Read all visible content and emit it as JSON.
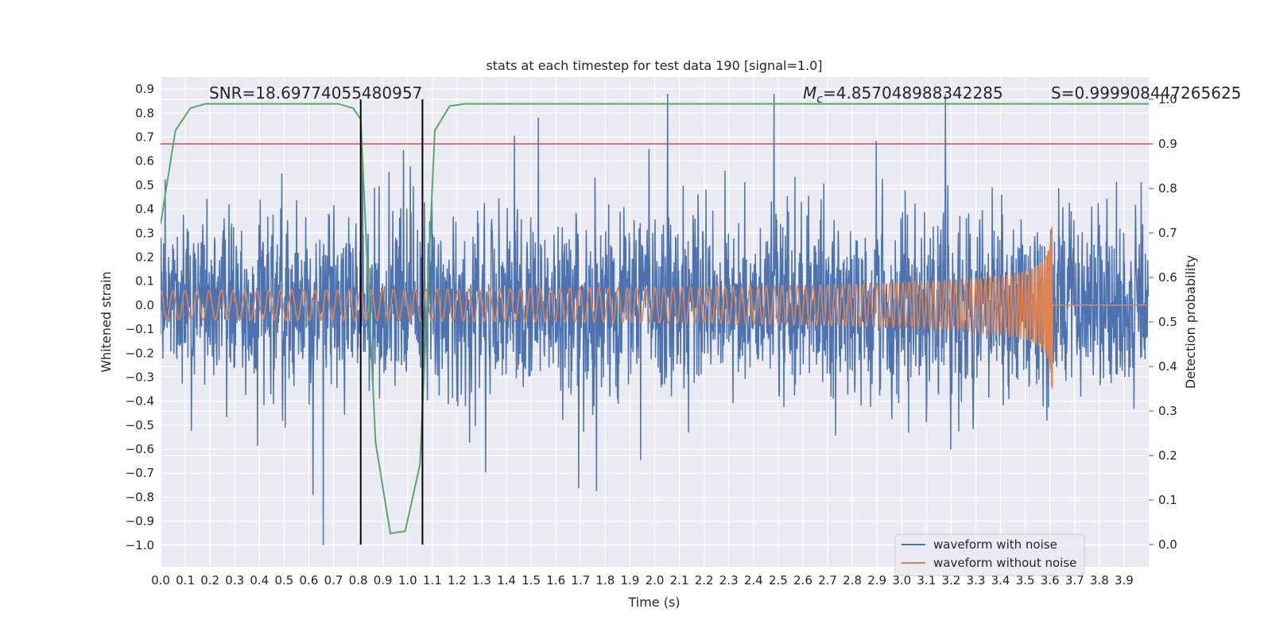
{
  "chart_data": {
    "type": "line",
    "title": "stats at each timestep for test data 190 [signal=1.0]",
    "xlabel": "Time (s)",
    "ylabel": "Whitened strain",
    "ylabel_right": "Detection probability",
    "xlim": [
      0.0,
      4.0
    ],
    "ylim": [
      -1.09,
      0.95
    ],
    "ylim_right": [
      -0.05,
      1.05
    ],
    "x_ticks": [
      "0.0",
      "0.1",
      "0.2",
      "0.3",
      "0.4",
      "0.5",
      "0.6",
      "0.7",
      "0.8",
      "0.9",
      "1.0",
      "1.1",
      "1.2",
      "1.3",
      "1.4",
      "1.5",
      "1.6",
      "1.7",
      "1.8",
      "1.9",
      "2.0",
      "2.1",
      "2.2",
      "2.3",
      "2.4",
      "2.5",
      "2.6",
      "2.7",
      "2.8",
      "2.9",
      "3.0",
      "3.1",
      "3.2",
      "3.3",
      "3.4",
      "3.5",
      "3.6",
      "3.7",
      "3.8",
      "3.9"
    ],
    "y_ticks": [
      "0.9",
      "0.8",
      "0.7",
      "0.6",
      "0.5",
      "0.4",
      "0.3",
      "0.2",
      "0.1",
      "0.0",
      "−0.1",
      "−0.2",
      "−0.3",
      "−0.4",
      "−0.5",
      "−0.6",
      "−0.7",
      "−0.8",
      "−0.9",
      "−1.0"
    ],
    "y_right_ticks": [
      "1.0",
      "0.9",
      "0.8",
      "0.7",
      "0.6",
      "0.5",
      "0.4",
      "0.3",
      "0.2",
      "0.1",
      "0.0"
    ],
    "annotations": {
      "snr": "SNR=18.69774055480957",
      "mc_symbol": "M",
      "mc_sub": "c",
      "mc_value": "=4.857048988342285",
      "s": "S=0.999908447265625"
    },
    "series": [
      {
        "name": "waveform with noise",
        "color": "#4c72b0",
        "kind": "noisy strain, amplitude ~0.3-0.9",
        "x_range": [
          0.0,
          4.0
        ]
      },
      {
        "name": "waveform without noise",
        "color": "#dd8452",
        "kind": "chirp",
        "amplitude_start": 0.06,
        "amplitude_peak": 0.36,
        "merger_time": 3.61,
        "x_range": [
          0.0,
          4.0
        ]
      },
      {
        "name": "detection probability",
        "color": "#55a868",
        "axis": "right",
        "x": [
          0.0,
          0.06,
          0.12,
          0.18,
          0.24,
          0.3,
          0.36,
          0.42,
          0.48,
          0.54,
          0.6,
          0.66,
          0.72,
          0.78,
          0.81,
          0.87,
          0.93,
          0.99,
          1.05,
          1.11,
          1.17,
          1.23,
          1.5,
          2.0,
          2.5,
          3.0,
          3.5,
          4.0
        ],
        "y": [
          0.72,
          0.93,
          0.98,
          0.99,
          0.99,
          0.99,
          0.99,
          0.99,
          0.99,
          0.99,
          0.99,
          0.99,
          0.99,
          0.98,
          0.955,
          0.23,
          0.025,
          0.03,
          0.18,
          0.93,
          0.985,
          0.99,
          0.99,
          0.99,
          0.99,
          0.99,
          0.99,
          0.99
        ]
      }
    ],
    "threshold": {
      "axis": "right",
      "value": 0.9,
      "color": "#c44e52"
    },
    "vlines": [
      {
        "x": 0.81,
        "color": "#000000"
      },
      {
        "x": 1.06,
        "color": "#000000"
      }
    ],
    "legend": {
      "position": "lower-right",
      "entries": [
        "waveform with noise",
        "waveform without noise"
      ]
    },
    "grid": true,
    "background": "#eaeaf2"
  }
}
